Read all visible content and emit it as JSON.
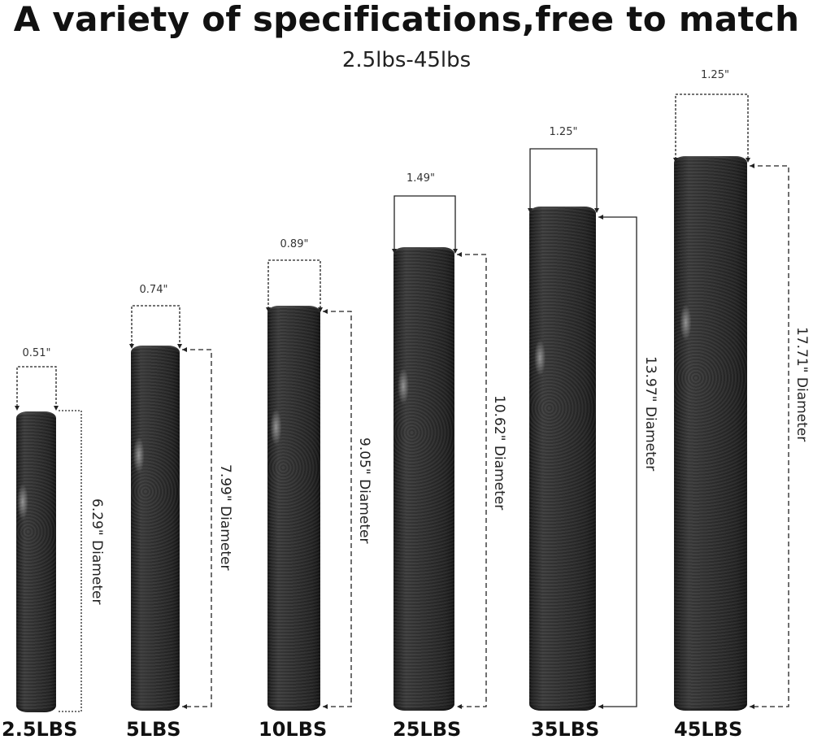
{
  "header": {
    "title": "A variety of specifications,free to match",
    "subtitle": "2.5lbs-45lbs"
  },
  "plates": [
    {
      "weight": "2.5LBS",
      "thickness": "0.51\"",
      "diameter": "6.29\" Diameter"
    },
    {
      "weight": "5LBS",
      "thickness": "0.74\"",
      "diameter": "7.99\" Diameter"
    },
    {
      "weight": "10LBS",
      "thickness": "0.89\"",
      "diameter": "9.05\" Diameter"
    },
    {
      "weight": "25LBS",
      "thickness": "1.49\"",
      "diameter": "10.62\" Diameter"
    },
    {
      "weight": "35LBS",
      "thickness": "1.25\"",
      "diameter": "13.97\" Diameter"
    },
    {
      "weight": "45LBS",
      "thickness": "1.25\"",
      "diameter": "17.71\" Diameter"
    }
  ],
  "colors": {
    "plate": "#2a2a2a",
    "text": "#111111",
    "line": "#222222"
  }
}
